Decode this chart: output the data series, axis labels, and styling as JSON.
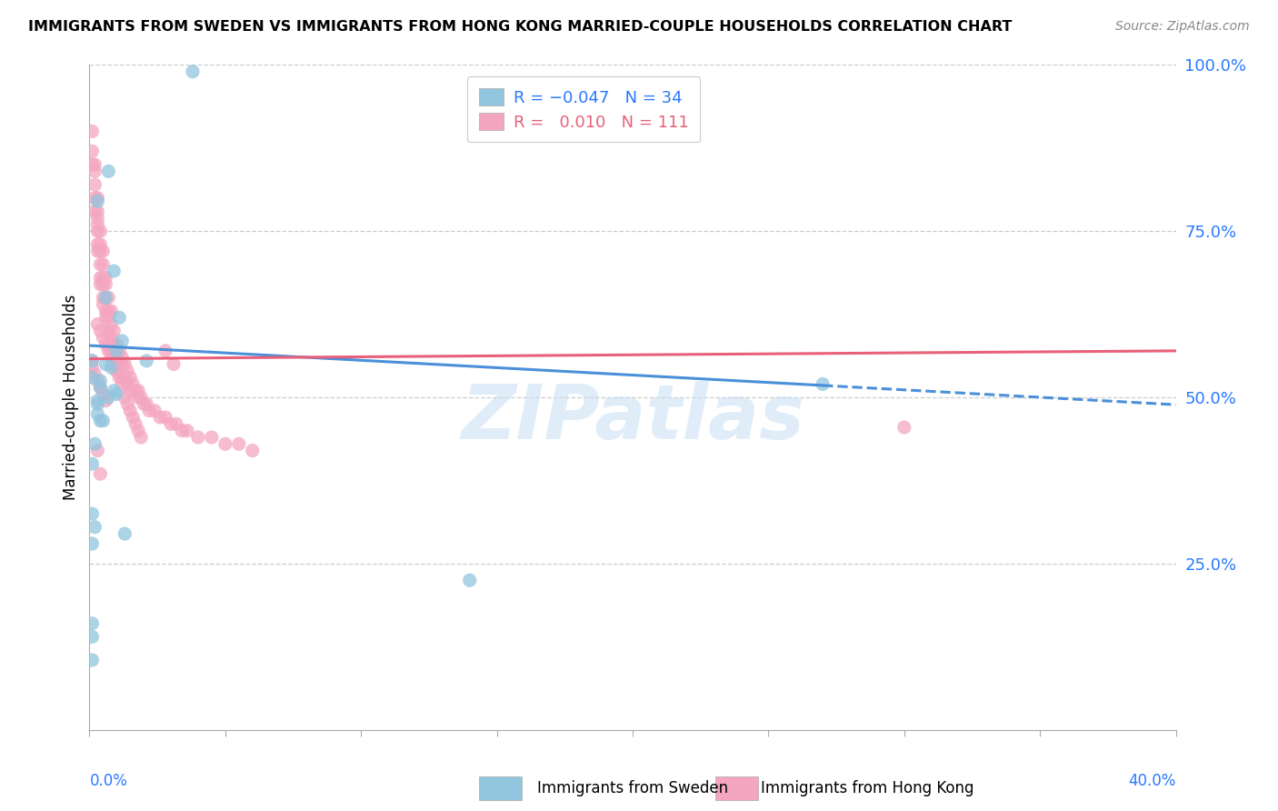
{
  "title": "IMMIGRANTS FROM SWEDEN VS IMMIGRANTS FROM HONG KONG MARRIED-COUPLE HOUSEHOLDS CORRELATION CHART",
  "source": "Source: ZipAtlas.com",
  "ylabel": "Married-couple Households",
  "watermark": "ZIPatlas",
  "sweden_color": "#92c5de",
  "hk_color": "#f4a6c0",
  "trend_sweden_color": "#4a90d9",
  "trend_hk_color": "#e8607a",
  "xlim": [
    0.0,
    0.4
  ],
  "ylim": [
    0.0,
    1.0
  ],
  "sweden_x": [
    0.038,
    0.007,
    0.003,
    0.009,
    0.011,
    0.012,
    0.01,
    0.006,
    0.008,
    0.004,
    0.004,
    0.009,
    0.01,
    0.007,
    0.003,
    0.003,
    0.003,
    0.004,
    0.005,
    0.006,
    0.002,
    0.001,
    0.001,
    0.001,
    0.001,
    0.001,
    0.021,
    0.27,
    0.001,
    0.013,
    0.14,
    0.002,
    0.001,
    0.001
  ],
  "sweden_y": [
    0.99,
    0.84,
    0.795,
    0.69,
    0.62,
    0.585,
    0.57,
    0.65,
    0.545,
    0.525,
    0.515,
    0.51,
    0.505,
    0.5,
    0.495,
    0.49,
    0.475,
    0.465,
    0.465,
    0.55,
    0.43,
    0.4,
    0.325,
    0.16,
    0.14,
    0.555,
    0.555,
    0.52,
    0.28,
    0.295,
    0.225,
    0.305,
    0.105,
    0.53
  ],
  "hk_x": [
    0.001,
    0.001,
    0.001,
    0.002,
    0.002,
    0.002,
    0.002,
    0.002,
    0.003,
    0.003,
    0.003,
    0.003,
    0.003,
    0.003,
    0.003,
    0.004,
    0.004,
    0.004,
    0.004,
    0.004,
    0.004,
    0.005,
    0.005,
    0.005,
    0.005,
    0.005,
    0.005,
    0.006,
    0.006,
    0.006,
    0.006,
    0.006,
    0.007,
    0.007,
    0.007,
    0.007,
    0.007,
    0.008,
    0.008,
    0.008,
    0.008,
    0.009,
    0.009,
    0.009,
    0.01,
    0.01,
    0.01,
    0.011,
    0.011,
    0.012,
    0.012,
    0.012,
    0.013,
    0.013,
    0.014,
    0.014,
    0.015,
    0.015,
    0.016,
    0.017,
    0.018,
    0.018,
    0.019,
    0.02,
    0.021,
    0.022,
    0.024,
    0.026,
    0.028,
    0.03,
    0.032,
    0.034,
    0.036,
    0.04,
    0.045,
    0.05,
    0.055,
    0.06,
    0.001,
    0.001,
    0.002,
    0.003,
    0.004,
    0.005,
    0.006,
    0.003,
    0.004,
    0.005,
    0.006,
    0.007,
    0.008,
    0.009,
    0.01,
    0.011,
    0.012,
    0.013,
    0.014,
    0.015,
    0.016,
    0.017,
    0.018,
    0.019,
    0.028,
    0.031,
    0.004,
    0.003,
    0.3
  ],
  "hk_y": [
    0.9,
    0.87,
    0.85,
    0.85,
    0.84,
    0.82,
    0.8,
    0.78,
    0.8,
    0.78,
    0.77,
    0.76,
    0.75,
    0.73,
    0.72,
    0.75,
    0.73,
    0.72,
    0.7,
    0.68,
    0.67,
    0.72,
    0.7,
    0.68,
    0.67,
    0.65,
    0.64,
    0.68,
    0.67,
    0.65,
    0.63,
    0.62,
    0.65,
    0.63,
    0.62,
    0.6,
    0.58,
    0.63,
    0.61,
    0.59,
    0.57,
    0.6,
    0.58,
    0.57,
    0.58,
    0.56,
    0.54,
    0.57,
    0.55,
    0.56,
    0.55,
    0.53,
    0.55,
    0.53,
    0.54,
    0.52,
    0.53,
    0.51,
    0.52,
    0.51,
    0.51,
    0.5,
    0.5,
    0.49,
    0.49,
    0.48,
    0.48,
    0.47,
    0.47,
    0.46,
    0.46,
    0.45,
    0.45,
    0.44,
    0.44,
    0.43,
    0.43,
    0.42,
    0.555,
    0.545,
    0.535,
    0.525,
    0.515,
    0.505,
    0.495,
    0.61,
    0.6,
    0.59,
    0.58,
    0.57,
    0.56,
    0.55,
    0.54,
    0.53,
    0.52,
    0.5,
    0.49,
    0.48,
    0.47,
    0.46,
    0.45,
    0.44,
    0.57,
    0.55,
    0.385,
    0.42,
    0.455
  ],
  "sweden_trend_x0": 0.0,
  "sweden_trend_y0": 0.578,
  "sweden_trend_x1": 0.27,
  "sweden_trend_y1": 0.518,
  "sweden_trend_x2": 0.4,
  "sweden_trend_y2": 0.489,
  "hk_trend_x0": 0.0,
  "hk_trend_y0": 0.558,
  "hk_trend_x1": 0.4,
  "hk_trend_y1": 0.57
}
